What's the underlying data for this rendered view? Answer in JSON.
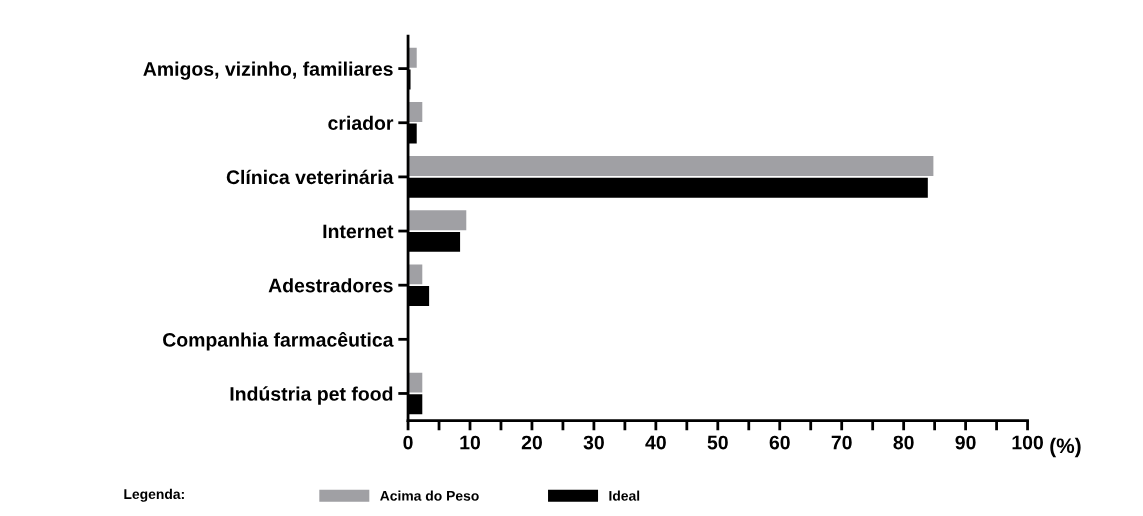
{
  "chart_data": {
    "type": "bar",
    "orientation": "horizontal",
    "categories": [
      "Amigos, vizinho, familiares",
      "criador",
      "Clínica veterinária",
      "Internet",
      "Adestradores",
      "Companhia farmacêutica",
      "Indústria pet food"
    ],
    "series": [
      {
        "name": "Acima do Peso",
        "color": "#a0a0a4",
        "values": [
          1.4,
          2.3,
          84.8,
          9.4,
          2.3,
          0,
          2.3
        ]
      },
      {
        "name": "Ideal",
        "color": "#000000",
        "values": [
          0.4,
          1.4,
          83.9,
          8.4,
          3.4,
          null,
          2.3
        ]
      }
    ],
    "xlabel": "(%)",
    "legend_title": "Legenda:",
    "legend": "bottom",
    "grid": false,
    "xlim": [
      0,
      100
    ],
    "xticks": [
      0,
      {
        "value": 5,
        "label": null
      },
      10,
      {
        "value": 15,
        "label": null
      },
      20,
      {
        "value": 25,
        "label": null
      },
      30,
      {
        "value": 35,
        "label": null
      },
      40,
      {
        "value": 45,
        "label": null
      },
      50,
      {
        "value": 55,
        "label": null
      },
      60,
      {
        "value": 65,
        "label": null
      },
      70,
      {
        "value": 75,
        "label": null
      },
      80,
      {
        "value": 85,
        "label": null
      },
      90,
      {
        "value": 95,
        "label": null
      },
      100
    ]
  }
}
